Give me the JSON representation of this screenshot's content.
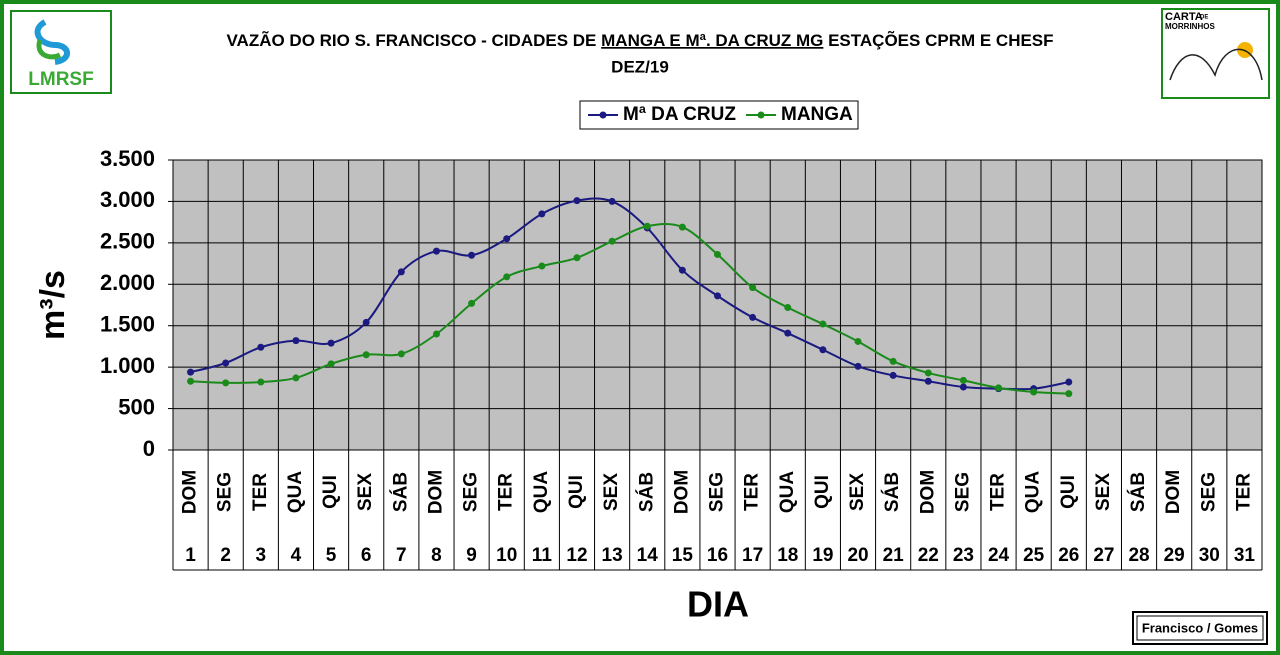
{
  "chart_data": {
    "type": "line",
    "title_parts": [
      "VAZÃO DO RIO S. FRANCISCO - CIDADES DE ",
      "MANGA E Mª. DA CRUZ MG",
      " ESTAÇÕES CPRM E CHESF"
    ],
    "subtitle": "DEZ/19",
    "y_label": "m³/s",
    "x_label": "DIA",
    "left_logo": "LMRSF",
    "right_logo": [
      "CARTA",
      "DE",
      "MORRINHOS"
    ],
    "credit": "Francisco / Gomes",
    "categories": [
      "DOM",
      "SEG",
      "TER",
      "QUA",
      "QUI",
      "SEX",
      "SÁB",
      "DOM",
      "SEG",
      "TER",
      "QUA",
      "QUI",
      "SEX",
      "SÁB",
      "DOM",
      "SEG",
      "TER",
      "QUA",
      "QUI",
      "SEX",
      "SÁB",
      "DOM",
      "SEG",
      "TER",
      "QUA",
      "QUI",
      "SEX",
      "SÁB",
      "DOM",
      "SEG",
      "TER"
    ],
    "days": [
      1,
      2,
      3,
      4,
      5,
      6,
      7,
      8,
      9,
      10,
      11,
      12,
      13,
      14,
      15,
      16,
      17,
      18,
      19,
      20,
      21,
      22,
      23,
      24,
      25,
      26,
      27,
      28,
      29,
      30,
      31
    ],
    "series": [
      {
        "name": "Mª DA CRUZ",
        "color": "#1a1a80",
        "values": [
          940,
          1050,
          1240,
          1320,
          1290,
          1540,
          2150,
          2400,
          2350,
          2550,
          2850,
          3010,
          3000,
          2680,
          2170,
          1860,
          1600,
          1410,
          1210,
          1010,
          900,
          830,
          760,
          740,
          740,
          820,
          null,
          null,
          null,
          null,
          null
        ]
      },
      {
        "name": "MANGA",
        "color": "#1a8a1a",
        "values": [
          830,
          810,
          820,
          870,
          1040,
          1150,
          1160,
          1400,
          1770,
          2090,
          2220,
          2320,
          2520,
          2700,
          2690,
          2360,
          1960,
          1720,
          1520,
          1310,
          1070,
          930,
          840,
          750,
          700,
          680,
          null,
          null,
          null,
          null,
          null
        ]
      }
    ],
    "ylim": [
      0,
      3500
    ],
    "yticks": [
      0,
      500,
      {
        "value": 1000,
        "label": "1.000"
      },
      {
        "value": 1500,
        "label": "1.500"
      },
      {
        "value": 2000,
        "label": "2.000"
      },
      {
        "value": 2500,
        "label": "2.500"
      },
      {
        "value": 3000,
        "label": "3.000"
      },
      {
        "value": 3500,
        "label": "3.500"
      }
    ],
    "grid": true,
    "plot_background": "#c0c0c0"
  }
}
